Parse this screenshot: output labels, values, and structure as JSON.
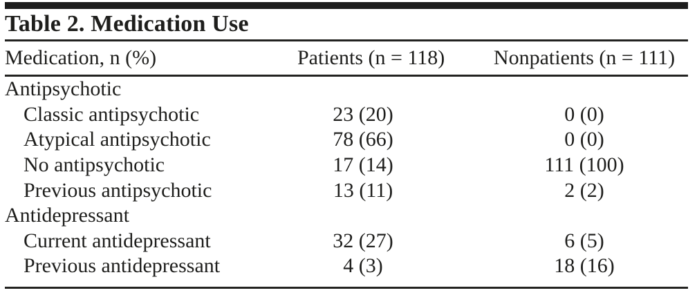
{
  "table": {
    "title": "Table 2. Medication Use",
    "columns": [
      "Medication, n (%)",
      "Patients (n = 118)",
      "Nonpatients (n = 111)"
    ],
    "rows": [
      {
        "label": "Antipsychotic",
        "category": true,
        "patients": "",
        "nonpatients": ""
      },
      {
        "label": "Classic antipsychotic",
        "category": false,
        "patients": "23 (20)",
        "nonpatients": "0 (0)"
      },
      {
        "label": "Atypical antipsychotic",
        "category": false,
        "patients": "78 (66)",
        "nonpatients": "0 (0)"
      },
      {
        "label": "No antipsychotic",
        "category": false,
        "patients": "17 (14)",
        "nonpatients": "111 (100)"
      },
      {
        "label": "Previous antipsychotic",
        "category": false,
        "patients": "13 (11)",
        "nonpatients": "2 (2)"
      },
      {
        "label": "Antidepressant",
        "category": true,
        "patients": "",
        "nonpatients": ""
      },
      {
        "label": "Current antidepressant",
        "category": false,
        "patients": "32 (27)",
        "nonpatients": "6 (5)"
      },
      {
        "label": "Previous antidepressant",
        "category": false,
        "patients": "4 (3)",
        "nonpatients": "18 (16)"
      }
    ]
  },
  "colors": {
    "text": "#1e1e1c",
    "rule": "#222220",
    "background": "#ffffff"
  }
}
